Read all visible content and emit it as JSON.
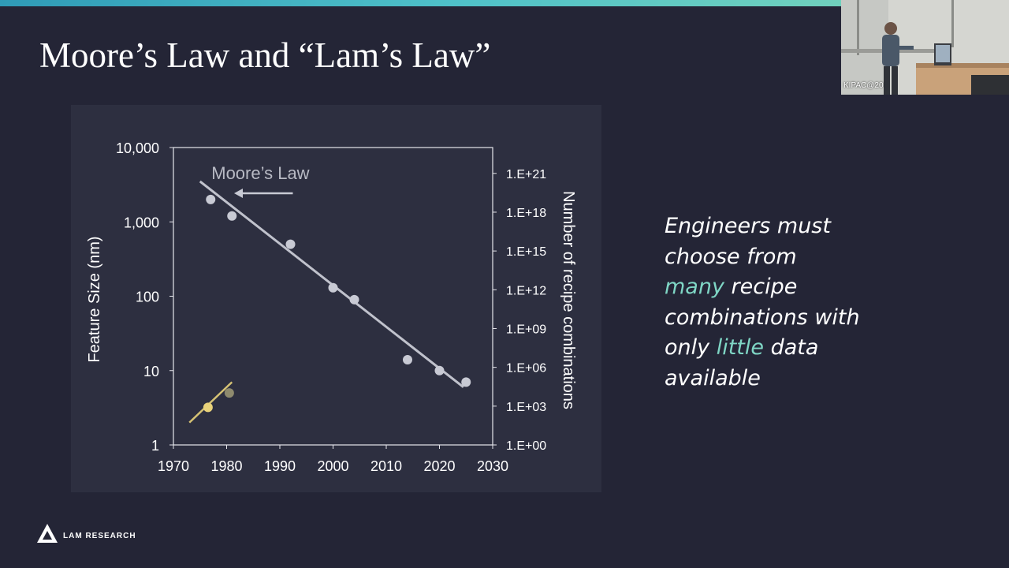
{
  "slide": {
    "title": "Moore’s Law and “Lam’s Law”",
    "side_text": {
      "line1": "Engineers must",
      "line2": "choose from",
      "line3_accent": "many",
      "line3_rest": " recipe",
      "line4": "combinations with",
      "line5_pre": "only ",
      "line5_accent": "little",
      "line5_rest": " data",
      "line6": "available"
    },
    "logo_text": "LAM RESEARCH",
    "webcam_label": "KIPAC@20"
  },
  "colors": {
    "background": "#242536",
    "panel": "#2d2f40",
    "accent": "#7fd6c5",
    "moore_series": "#c8cad4",
    "lam_series": "#e8d27a"
  },
  "chart_data": {
    "type": "scatter",
    "x_axis": {
      "range": [
        1970,
        2030
      ],
      "ticks": [
        1970,
        1980,
        1990,
        2000,
        2010,
        2020,
        2030
      ],
      "tick_labels": [
        "1970",
        "1980",
        "1990",
        "2000",
        "2010",
        "2020",
        "2030"
      ]
    },
    "y_axis_left": {
      "label": "Feature Size (nm)",
      "scale": "log",
      "range": [
        1,
        10000
      ],
      "ticks": [
        1,
        10,
        100,
        1000,
        10000
      ],
      "tick_labels": [
        "1",
        "10",
        "100",
        "1,000",
        "10,000"
      ]
    },
    "y_axis_right": {
      "label": "Number of recipe combinations",
      "scale": "log",
      "range_exponent": [
        0,
        23
      ],
      "ticks_exponent": [
        0,
        3,
        6,
        9,
        12,
        15,
        18,
        21
      ],
      "tick_labels": [
        "1.E+00",
        "1.E+03",
        "1.E+06",
        "1.E+09",
        "1.E+12",
        "1.E+15",
        "1.E+18",
        "1.E+21"
      ]
    },
    "series": [
      {
        "name": "Moore’s Law",
        "annotation": "Moore’s Law",
        "axis": "left",
        "points": [
          {
            "x": 1977,
            "y": 2000
          },
          {
            "x": 1981,
            "y": 1200
          },
          {
            "x": 1992,
            "y": 500
          },
          {
            "x": 2000,
            "y": 130
          },
          {
            "x": 2004,
            "y": 90
          },
          {
            "x": 2014,
            "y": 14
          },
          {
            "x": 2020,
            "y": 10
          },
          {
            "x": 2025,
            "y": 7
          }
        ],
        "trend_line": [
          {
            "x": 1975,
            "y": 3500
          },
          {
            "x": 2024.5,
            "y": 6
          }
        ]
      },
      {
        "name": "Lam’s Law",
        "axis": "left",
        "points": [
          {
            "x": 1976.5,
            "y": 3.2
          },
          {
            "x": 1980.5,
            "y": 5
          }
        ],
        "trend_line": [
          {
            "x": 1973,
            "y": 2
          },
          {
            "x": 1981,
            "y": 7
          }
        ]
      }
    ]
  }
}
